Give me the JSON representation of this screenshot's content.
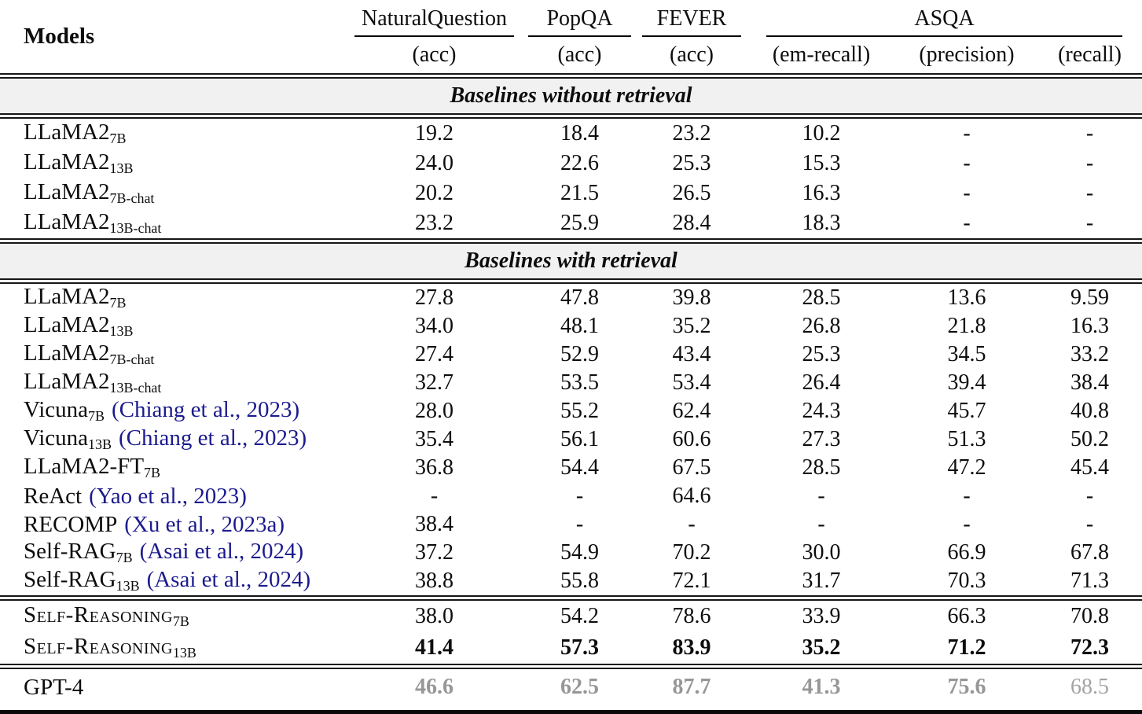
{
  "header": {
    "models_label": "Models",
    "groups": [
      {
        "label": "NaturalQuestion"
      },
      {
        "label": "PopQA"
      },
      {
        "label": "FEVER"
      },
      {
        "label": "ASQA"
      }
    ],
    "sub_labels": [
      "(acc)",
      "(acc)",
      "(acc)",
      "(em-recall)",
      "(precision)",
      "(recall)"
    ]
  },
  "colors": {
    "citation_link": "#1b1b8e",
    "section_band": "#f1f1f1",
    "muted_gray": "#979797"
  },
  "sections": [
    {
      "title": "Baselines without retrieval",
      "row_h": "rh38",
      "rows": [
        {
          "name": "LLaMA2",
          "sub": "7B",
          "cite": "",
          "smallcaps": false,
          "values": [
            "19.2",
            "18.4",
            "23.2",
            "10.2",
            "-",
            "-"
          ],
          "styles": null
        },
        {
          "name": "LLaMA2",
          "sub": "13B",
          "cite": "",
          "smallcaps": false,
          "values": [
            "24.0",
            "22.6",
            "25.3",
            "15.3",
            "-",
            "-"
          ],
          "styles": null
        },
        {
          "name": "LLaMA2",
          "sub": "7B-chat",
          "cite": "",
          "smallcaps": false,
          "values": [
            "20.2",
            "21.5",
            "26.5",
            "16.3",
            "-",
            "-"
          ],
          "styles": null
        },
        {
          "name": "LLaMA2",
          "sub": "13B-chat",
          "cite": "",
          "smallcaps": false,
          "values": [
            "23.2",
            "25.9",
            "28.4",
            "18.3",
            "-",
            "-"
          ],
          "styles": null
        }
      ]
    },
    {
      "title": "Baselines with retrieval",
      "row_h": "rh36",
      "rows": [
        {
          "name": "LLaMA2",
          "sub": "7B",
          "cite": "",
          "smallcaps": false,
          "values": [
            "27.8",
            "47.8",
            "39.8",
            "28.5",
            "13.6",
            "9.59"
          ],
          "styles": null
        },
        {
          "name": "LLaMA2",
          "sub": "13B",
          "cite": "",
          "smallcaps": false,
          "values": [
            "34.0",
            "48.1",
            "35.2",
            "26.8",
            "21.8",
            "16.3"
          ],
          "styles": null
        },
        {
          "name": "LLaMA2",
          "sub": "7B-chat",
          "cite": "",
          "smallcaps": false,
          "values": [
            "27.4",
            "52.9",
            "43.4",
            "25.3",
            "34.5",
            "33.2"
          ],
          "styles": null
        },
        {
          "name": "LLaMA2",
          "sub": "13B-chat",
          "cite": "",
          "smallcaps": false,
          "values": [
            "32.7",
            "53.5",
            "53.4",
            "26.4",
            "39.4",
            "38.4"
          ],
          "styles": null
        },
        {
          "name": "Vicuna",
          "sub": "7B",
          "cite": "(Chiang et al., 2023)",
          "smallcaps": false,
          "values": [
            "28.0",
            "55.2",
            "62.4",
            "24.3",
            "45.7",
            "40.8"
          ],
          "styles": null
        },
        {
          "name": "Vicuna",
          "sub": "13B",
          "cite": "(Chiang et al., 2023)",
          "smallcaps": false,
          "values": [
            "35.4",
            "56.1",
            "60.6",
            "27.3",
            "51.3",
            "50.2"
          ],
          "styles": null
        },
        {
          "name": "LLaMA2-FT",
          "sub": "7B",
          "cite": "",
          "smallcaps": false,
          "values": [
            "36.8",
            "54.4",
            "67.5",
            "28.5",
            "47.2",
            "45.4"
          ],
          "styles": null
        },
        {
          "name": "ReAct",
          "sub": "",
          "cite": "(Yao et al., 2023)",
          "smallcaps": false,
          "values": [
            "-",
            "-",
            "64.6",
            "-",
            "-",
            "-"
          ],
          "styles": null
        },
        {
          "name": "RECOMP",
          "sub": "",
          "cite": "(Xu et al., 2023a)",
          "smallcaps": false,
          "values": [
            "38.4",
            "-",
            "-",
            "-",
            "-",
            "-"
          ],
          "styles": null
        },
        {
          "name": "Self-RAG",
          "sub": "7B",
          "cite": "(Asai et al., 2024)",
          "smallcaps": false,
          "values": [
            "37.2",
            "54.9",
            "70.2",
            "30.0",
            "66.9",
            "67.8"
          ],
          "styles": null
        },
        {
          "name": "Self-RAG",
          "sub": "13B",
          "cite": "(Asai et al., 2024)",
          "smallcaps": false,
          "values": [
            "38.8",
            "55.8",
            "72.1",
            "31.7",
            "70.3",
            "71.3"
          ],
          "styles": null
        }
      ]
    },
    {
      "title": null,
      "row_h": "rh40",
      "rows": [
        {
          "name": "Self-Reasoning",
          "sub": "7B",
          "cite": "",
          "smallcaps": true,
          "values": [
            "38.0",
            "54.2",
            "78.6",
            "33.9",
            "66.3",
            "70.8"
          ],
          "styles": null
        },
        {
          "name": "Self-Reasoning",
          "sub": "13B",
          "cite": "",
          "smallcaps": true,
          "values": [
            "41.4",
            "57.3",
            "83.9",
            "35.2",
            "71.2",
            "72.3"
          ],
          "styles": [
            "v-bold",
            "v-bold",
            "v-bold",
            "v-bold",
            "v-bold",
            "v-bold"
          ]
        }
      ]
    },
    {
      "title": null,
      "row_h": "rh46",
      "rows": [
        {
          "name": "GPT-4",
          "sub": "",
          "cite": "",
          "smallcaps": false,
          "values": [
            "46.6",
            "62.5",
            "87.7",
            "41.3",
            "75.6",
            "68.5"
          ],
          "styles": [
            "v-gray-bold",
            "v-gray-bold",
            "v-gray-bold",
            "v-gray-bold",
            "v-gray-bold",
            "v-gray"
          ]
        }
      ]
    }
  ]
}
